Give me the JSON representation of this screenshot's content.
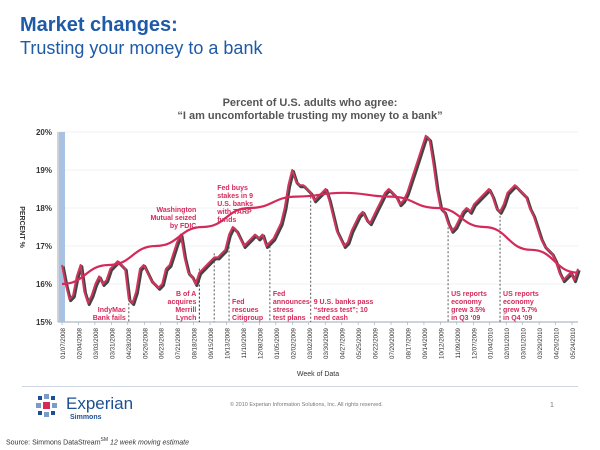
{
  "slide": {
    "title": "Market changes:",
    "subtitle": "Trusting your money to a bank",
    "copyright": "© 2010 Experian Information Solutions, Inc. All rights reserved.",
    "page_number": "1",
    "logo_word": "Experian",
    "logo_sub": "Simmons",
    "source_prefix": "Source:  Simmons DataStream",
    "source_sm": "SM",
    "source_suffix": " 12 week moving estimate",
    "colors": {
      "title": "#1f5aa6",
      "line": "#d1355d",
      "trend": "#d42a5a",
      "bar": "#aac2e2"
    }
  },
  "chart_data": {
    "type": "line",
    "title": "Percent of U.S. adults who agree:",
    "subtitle": "“I am uncomfortable trusting my money to a bank”",
    "xlabel": "Week of Data",
    "ylabel": "PERCENT %",
    "ylim": [
      15,
      20
    ],
    "yticks": [
      "15%",
      "16%",
      "17%",
      "18%",
      "19%",
      "20%"
    ],
    "x_tick_labels": [
      "01/07/2008",
      "02/04/2008",
      "03/03/2008",
      "03/31/2008",
      "04/28/2008",
      "05/26/2008",
      "06/23/2008",
      "07/21/2008",
      "08/18/2008",
      "09/15/2008",
      "10/13/2008",
      "11/10/2008",
      "12/08/2008",
      "01/05/2009",
      "02/02/2009",
      "03/02/2009",
      "03/30/2009",
      "04/27/2009",
      "05/25/2009",
      "06/22/2009",
      "07/20/2009",
      "08/17/2009",
      "09/14/2009",
      "10/12/2009",
      "11/09/2009",
      "12/07/2009",
      "01/04/2010",
      "02/01/2010",
      "03/01/2010",
      "03/29/2010",
      "04/26/2010",
      "05/24/2010"
    ],
    "series": [
      {
        "name": "12 week moving estimate",
        "values": [
          16.5,
          16.0,
          15.6,
          15.7,
          16.2,
          16.5,
          15.8,
          15.5,
          15.7,
          16.0,
          16.2,
          16.0,
          16.1,
          16.4,
          16.5,
          16.6,
          16.5,
          16.4,
          15.6,
          15.5,
          15.8,
          16.4,
          16.5,
          16.3,
          16.1,
          16.0,
          15.9,
          16.0,
          16.4,
          16.5,
          16.8,
          17.1,
          17.3,
          16.7,
          16.3,
          16.2,
          16.0,
          16.3,
          16.4,
          16.5,
          16.6,
          16.7,
          16.7,
          16.8,
          16.9,
          17.3,
          17.5,
          17.4,
          17.2,
          17.0,
          17.1,
          17.2,
          17.3,
          17.2,
          17.3,
          17.0,
          17.1,
          17.2,
          17.4,
          17.6,
          18.0,
          18.6,
          19.0,
          18.7,
          18.6,
          18.6,
          18.5,
          18.4,
          18.2,
          18.3,
          18.4,
          18.5,
          18.2,
          17.8,
          17.4,
          17.2,
          17.0,
          17.1,
          17.4,
          17.6,
          17.8,
          17.9,
          17.7,
          17.6,
          17.8,
          18.0,
          18.2,
          18.4,
          18.5,
          18.4,
          18.3,
          18.1,
          18.2,
          18.4,
          18.7,
          19.0,
          19.3,
          19.6,
          19.9,
          19.8,
          19.2,
          18.5,
          18.0,
          17.9,
          17.6,
          17.4,
          17.5,
          17.7,
          17.9,
          18.0,
          17.9,
          18.1,
          18.2,
          18.3,
          18.4,
          18.5,
          18.3,
          18.0,
          17.9,
          18.1,
          18.4,
          18.5,
          18.6,
          18.5,
          18.4,
          18.3,
          18.0,
          17.8,
          17.5,
          17.2,
          17.0,
          16.9,
          16.8,
          16.6,
          16.3,
          16.1,
          16.2,
          16.3,
          16.1,
          16.4
        ]
      },
      {
        "name": "Trend",
        "values": [
          16.0,
          16.5,
          17.0,
          17.5,
          18.0,
          18.3,
          18.4,
          18.3,
          18.0,
          17.5,
          16.9,
          16.3
        ]
      }
    ],
    "annotations": [
      {
        "id": "indymac",
        "lines": [
          "IndyMac",
          "Bank fails"
        ],
        "week_index": 18
      },
      {
        "id": "wamu",
        "lines": [
          "Washington",
          "Mutual seized",
          "by FDIC"
        ],
        "week_index": 37
      },
      {
        "id": "boa",
        "lines": [
          "B of A",
          "acquires",
          "Merrill",
          "Lynch"
        ],
        "week_index": 37
      },
      {
        "id": "tarp",
        "lines": [
          "Fed buys",
          "stakes in 9",
          "U.S. banks",
          "with TARP",
          "funds"
        ],
        "week_index": 41
      },
      {
        "id": "citigroup",
        "lines": [
          "Fed",
          "rescues",
          "Citigroup"
        ],
        "week_index": 45
      },
      {
        "id": "stress_announce",
        "lines": [
          "Fed",
          "announces",
          "stress",
          "test plans"
        ],
        "week_index": 56
      },
      {
        "id": "stress_pass",
        "lines": [
          "9 U.S. banks pass",
          "“stress test”; 10",
          "need cash"
        ],
        "week_index": 67
      },
      {
        "id": "q3",
        "lines": [
          "US reports",
          "economy",
          "grew 3.5%",
          "in Q3 ‘09"
        ],
        "week_index": 104
      },
      {
        "id": "q4",
        "lines": [
          "US reports",
          "economy",
          "grew 5.7%",
          "in Q4 ‘09"
        ],
        "week_index": 118
      }
    ]
  }
}
